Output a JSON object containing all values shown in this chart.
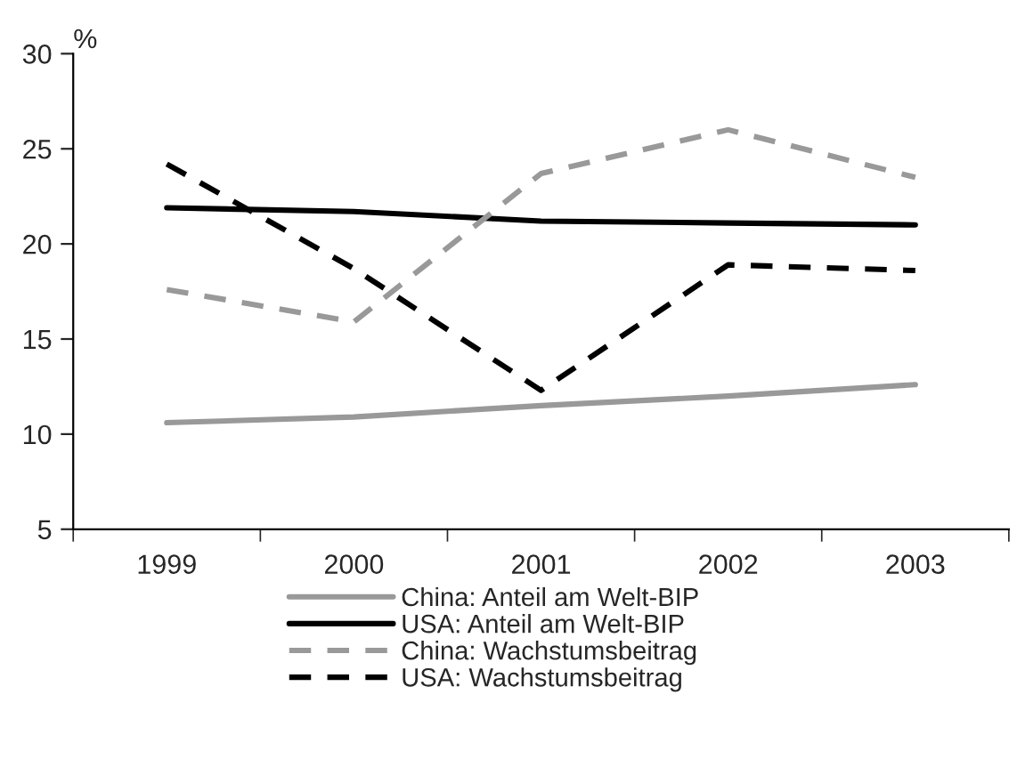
{
  "chart_data": {
    "type": "line",
    "ylabel": "%",
    "categories": [
      "1999",
      "2000",
      "2001",
      "2002",
      "2003"
    ],
    "series": [
      {
        "name": "China: Anteil am Welt-BIP",
        "color": "#999999",
        "line_style": "solid",
        "values": [
          10.6,
          10.9,
          11.5,
          12.0,
          12.6
        ]
      },
      {
        "name": "USA: Anteil am Welt-BIP",
        "color": "#000000",
        "line_style": "solid",
        "values": [
          21.9,
          21.7,
          21.2,
          21.1,
          21.0
        ]
      },
      {
        "name": "China: Wachstumsbeitrag",
        "color": "#999999",
        "line_style": "dashed",
        "values": [
          17.6,
          15.9,
          23.7,
          26.0,
          23.5
        ]
      },
      {
        "name": "USA: Wachstumsbeitrag",
        "color": "#000000",
        "line_style": "dashed",
        "values": [
          24.2,
          18.7,
          12.3,
          18.9,
          18.6
        ]
      }
    ],
    "ylim": [
      5,
      30
    ],
    "yticks": [
      5,
      10,
      15,
      20,
      25,
      30
    ],
    "grid": false,
    "legend": "bottom",
    "marker": "none"
  }
}
